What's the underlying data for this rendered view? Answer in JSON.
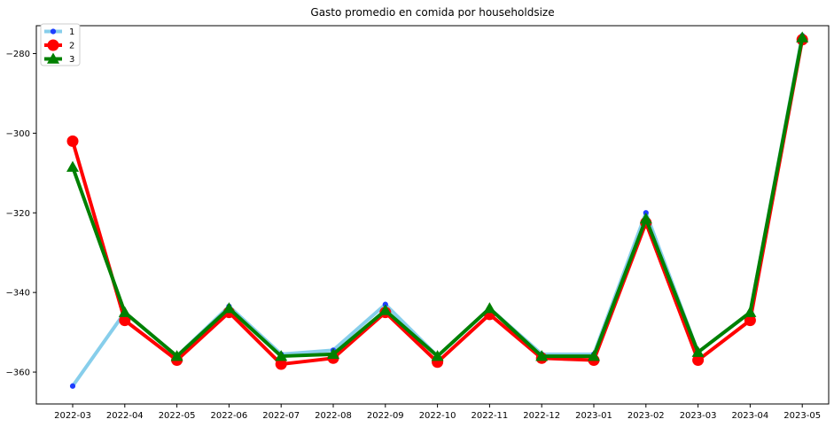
{
  "chart_data": {
    "type": "line",
    "title": "Gasto promedio en comida por householdsize",
    "xlabel": "",
    "ylabel": "",
    "categories": [
      "2022-03",
      "2022-04",
      "2022-05",
      "2022-06",
      "2022-07",
      "2022-08",
      "2022-09",
      "2022-10",
      "2022-11",
      "2022-12",
      "2023-01",
      "2023-02",
      "2023-03",
      "2023-04",
      "2023-05"
    ],
    "ylim": [
      -368,
      -273
    ],
    "yticks": [
      -360,
      -340,
      -320,
      -300,
      -280
    ],
    "ytick_labels": [
      "−360",
      "−340",
      "−320",
      "−300",
      "−280"
    ],
    "grid": false,
    "legend_position": "top-left",
    "series": [
      {
        "name": "1",
        "color": "#87ceeb",
        "marker_color": "#1f3fff",
        "marker": "circle-small",
        "values": [
          -363.5,
          -345.0,
          -356.0,
          -343.5,
          -355.5,
          -354.5,
          -343.0,
          -356.0,
          -344.0,
          -355.5,
          -355.5,
          -320.0,
          -355.0,
          -345.0,
          -275.5
        ]
      },
      {
        "name": "2",
        "color": "#ff0000",
        "marker_color": "#ff0000",
        "marker": "circle-large",
        "values": [
          -302.0,
          -347.0,
          -357.0,
          -345.0,
          -358.0,
          -356.5,
          -345.0,
          -357.5,
          -345.5,
          -356.5,
          -357.0,
          -322.5,
          -357.0,
          -347.0,
          -276.5
        ]
      },
      {
        "name": "3",
        "color": "#008000",
        "marker_color": "#008000",
        "marker": "triangle",
        "values": [
          -308.5,
          -345.0,
          -356.0,
          -344.0,
          -356.0,
          -355.5,
          -344.5,
          -356.0,
          -344.0,
          -356.0,
          -356.0,
          -321.5,
          -355.0,
          -345.0,
          -276.0
        ]
      }
    ]
  }
}
